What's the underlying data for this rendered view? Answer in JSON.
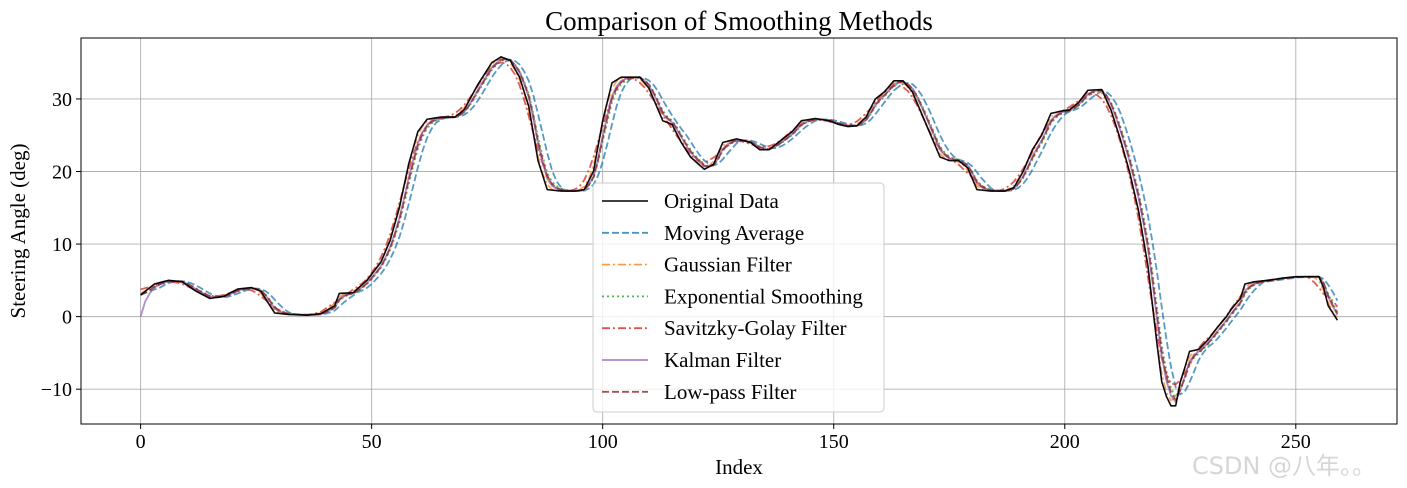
{
  "watermark": "CSDN @八年。。",
  "chart_data": {
    "type": "line",
    "title": "Comparison of Smoothing Methods",
    "xlabel": "Index",
    "ylabel": "Steering Angle (deg)",
    "xlim": [
      -12.9,
      271.9
    ],
    "ylim": [
      -14.8,
      38.4
    ],
    "xticks": [
      0,
      50,
      100,
      150,
      200,
      250
    ],
    "yticks": [
      -10,
      0,
      10,
      20,
      30
    ],
    "ytick_labels": [
      "−10",
      "0",
      "10",
      "20",
      "30"
    ],
    "grid": true,
    "legend_position": "lower-center",
    "original_keypoints": [
      [
        0,
        3
      ],
      [
        3,
        4.5
      ],
      [
        6,
        5
      ],
      [
        9,
        4.8
      ],
      [
        12,
        3.5
      ],
      [
        15,
        2.5
      ],
      [
        18,
        2.8
      ],
      [
        21,
        3.8
      ],
      [
        24,
        4
      ],
      [
        26,
        3.5
      ],
      [
        28,
        1.5
      ],
      [
        29,
        0.5
      ],
      [
        32,
        0.3
      ],
      [
        36,
        0.2
      ],
      [
        39,
        0.4
      ],
      [
        42,
        1.5
      ],
      [
        43,
        3.2
      ],
      [
        46,
        3.3
      ],
      [
        49,
        5
      ],
      [
        52,
        7.5
      ],
      [
        54,
        10.5
      ],
      [
        56,
        15
      ],
      [
        58,
        21
      ],
      [
        60,
        25.5
      ],
      [
        62,
        27.2
      ],
      [
        65,
        27.5
      ],
      [
        68,
        27.5
      ],
      [
        70,
        28.5
      ],
      [
        73,
        32
      ],
      [
        76,
        35
      ],
      [
        78,
        35.8
      ],
      [
        80,
        35.3
      ],
      [
        82,
        33
      ],
      [
        84,
        29
      ],
      [
        86,
        21.5
      ],
      [
        88,
        17.5
      ],
      [
        91,
        17.3
      ],
      [
        94,
        17.3
      ],
      [
        96,
        17.5
      ],
      [
        98,
        20
      ],
      [
        100,
        27
      ],
      [
        102,
        32.2
      ],
      [
        104,
        33
      ],
      [
        108,
        33
      ],
      [
        110,
        31.5
      ],
      [
        113,
        27
      ],
      [
        115,
        26.5
      ],
      [
        117,
        24
      ],
      [
        119,
        22
      ],
      [
        122,
        20.3
      ],
      [
        124,
        21
      ],
      [
        126,
        24
      ],
      [
        129,
        24.5
      ],
      [
        132,
        24
      ],
      [
        134,
        23
      ],
      [
        136,
        23
      ],
      [
        138,
        24
      ],
      [
        141,
        25.5
      ],
      [
        143,
        27
      ],
      [
        146,
        27.3
      ],
      [
        149,
        27
      ],
      [
        151,
        26.5
      ],
      [
        153,
        26.2
      ],
      [
        155,
        26.3
      ],
      [
        157,
        27.5
      ],
      [
        159,
        30
      ],
      [
        161,
        31
      ],
      [
        163,
        32.5
      ],
      [
        165,
        32.5
      ],
      [
        167,
        31
      ],
      [
        169,
        28
      ],
      [
        171,
        25
      ],
      [
        173,
        22
      ],
      [
        175,
        21.5
      ],
      [
        177,
        21.5
      ],
      [
        179,
        20.5
      ],
      [
        181,
        17.5
      ],
      [
        184,
        17.3
      ],
      [
        187,
        17.3
      ],
      [
        189,
        17.8
      ],
      [
        191,
        20
      ],
      [
        193,
        23
      ],
      [
        195,
        25
      ],
      [
        197,
        28
      ],
      [
        199,
        28.3
      ],
      [
        201,
        28.5
      ],
      [
        203,
        29.5
      ],
      [
        205,
        31.2
      ],
      [
        208,
        31.3
      ],
      [
        210,
        28.5
      ],
      [
        212,
        24.5
      ],
      [
        214,
        20
      ],
      [
        216,
        14.5
      ],
      [
        218,
        7
      ],
      [
        219,
        1.5
      ],
      [
        220,
        -4
      ],
      [
        221,
        -9
      ],
      [
        222,
        -11
      ],
      [
        223,
        -12.3
      ],
      [
        224,
        -12.3
      ],
      [
        225,
        -9
      ],
      [
        226,
        -7
      ],
      [
        227,
        -4.8
      ],
      [
        229,
        -4.5
      ],
      [
        231,
        -3.2
      ],
      [
        233,
        -1.5
      ],
      [
        235,
        0
      ],
      [
        236,
        1
      ],
      [
        238,
        2.5
      ],
      [
        239,
        4.5
      ],
      [
        241,
        4.8
      ],
      [
        244,
        5
      ],
      [
        247,
        5.3
      ],
      [
        250,
        5.5
      ],
      [
        253,
        5.5
      ],
      [
        255,
        5.5
      ],
      [
        256,
        4
      ],
      [
        257,
        1.5
      ],
      [
        258,
        0.5
      ],
      [
        259,
        -0.5
      ]
    ],
    "n_points": 260,
    "series": [
      {
        "name": "Original Data",
        "color": "#000000",
        "style": "solid",
        "width": 1.6,
        "method": "raw"
      },
      {
        "name": "Moving Average",
        "color": "#1f77b4",
        "style": "dashed",
        "width": 1.8,
        "method": "moving_average",
        "window": 5
      },
      {
        "name": "Gaussian Filter",
        "color": "#ff7f0e",
        "style": "dashdot",
        "width": 1.6,
        "method": "gaussian",
        "sigma": 1
      },
      {
        "name": "Exponential Smoothing",
        "color": "#2ca02c",
        "style": "dotted",
        "width": 1.8,
        "method": "exponential",
        "alpha": 0.5
      },
      {
        "name": "Savitzky-Golay Filter",
        "color": "#d62728",
        "style": "dashdot",
        "width": 1.8,
        "method": "savgol",
        "window": 7
      },
      {
        "name": "Kalman Filter",
        "color": "#9467bd",
        "style": "solid",
        "width": 1.8,
        "method": "kalman",
        "initial": 0,
        "gain": 0.6
      },
      {
        "name": "Low-pass Filter",
        "color": "#8c2a2a",
        "style": "dashed",
        "width": 1.8,
        "method": "lowpass",
        "alpha": 0.55
      }
    ]
  }
}
